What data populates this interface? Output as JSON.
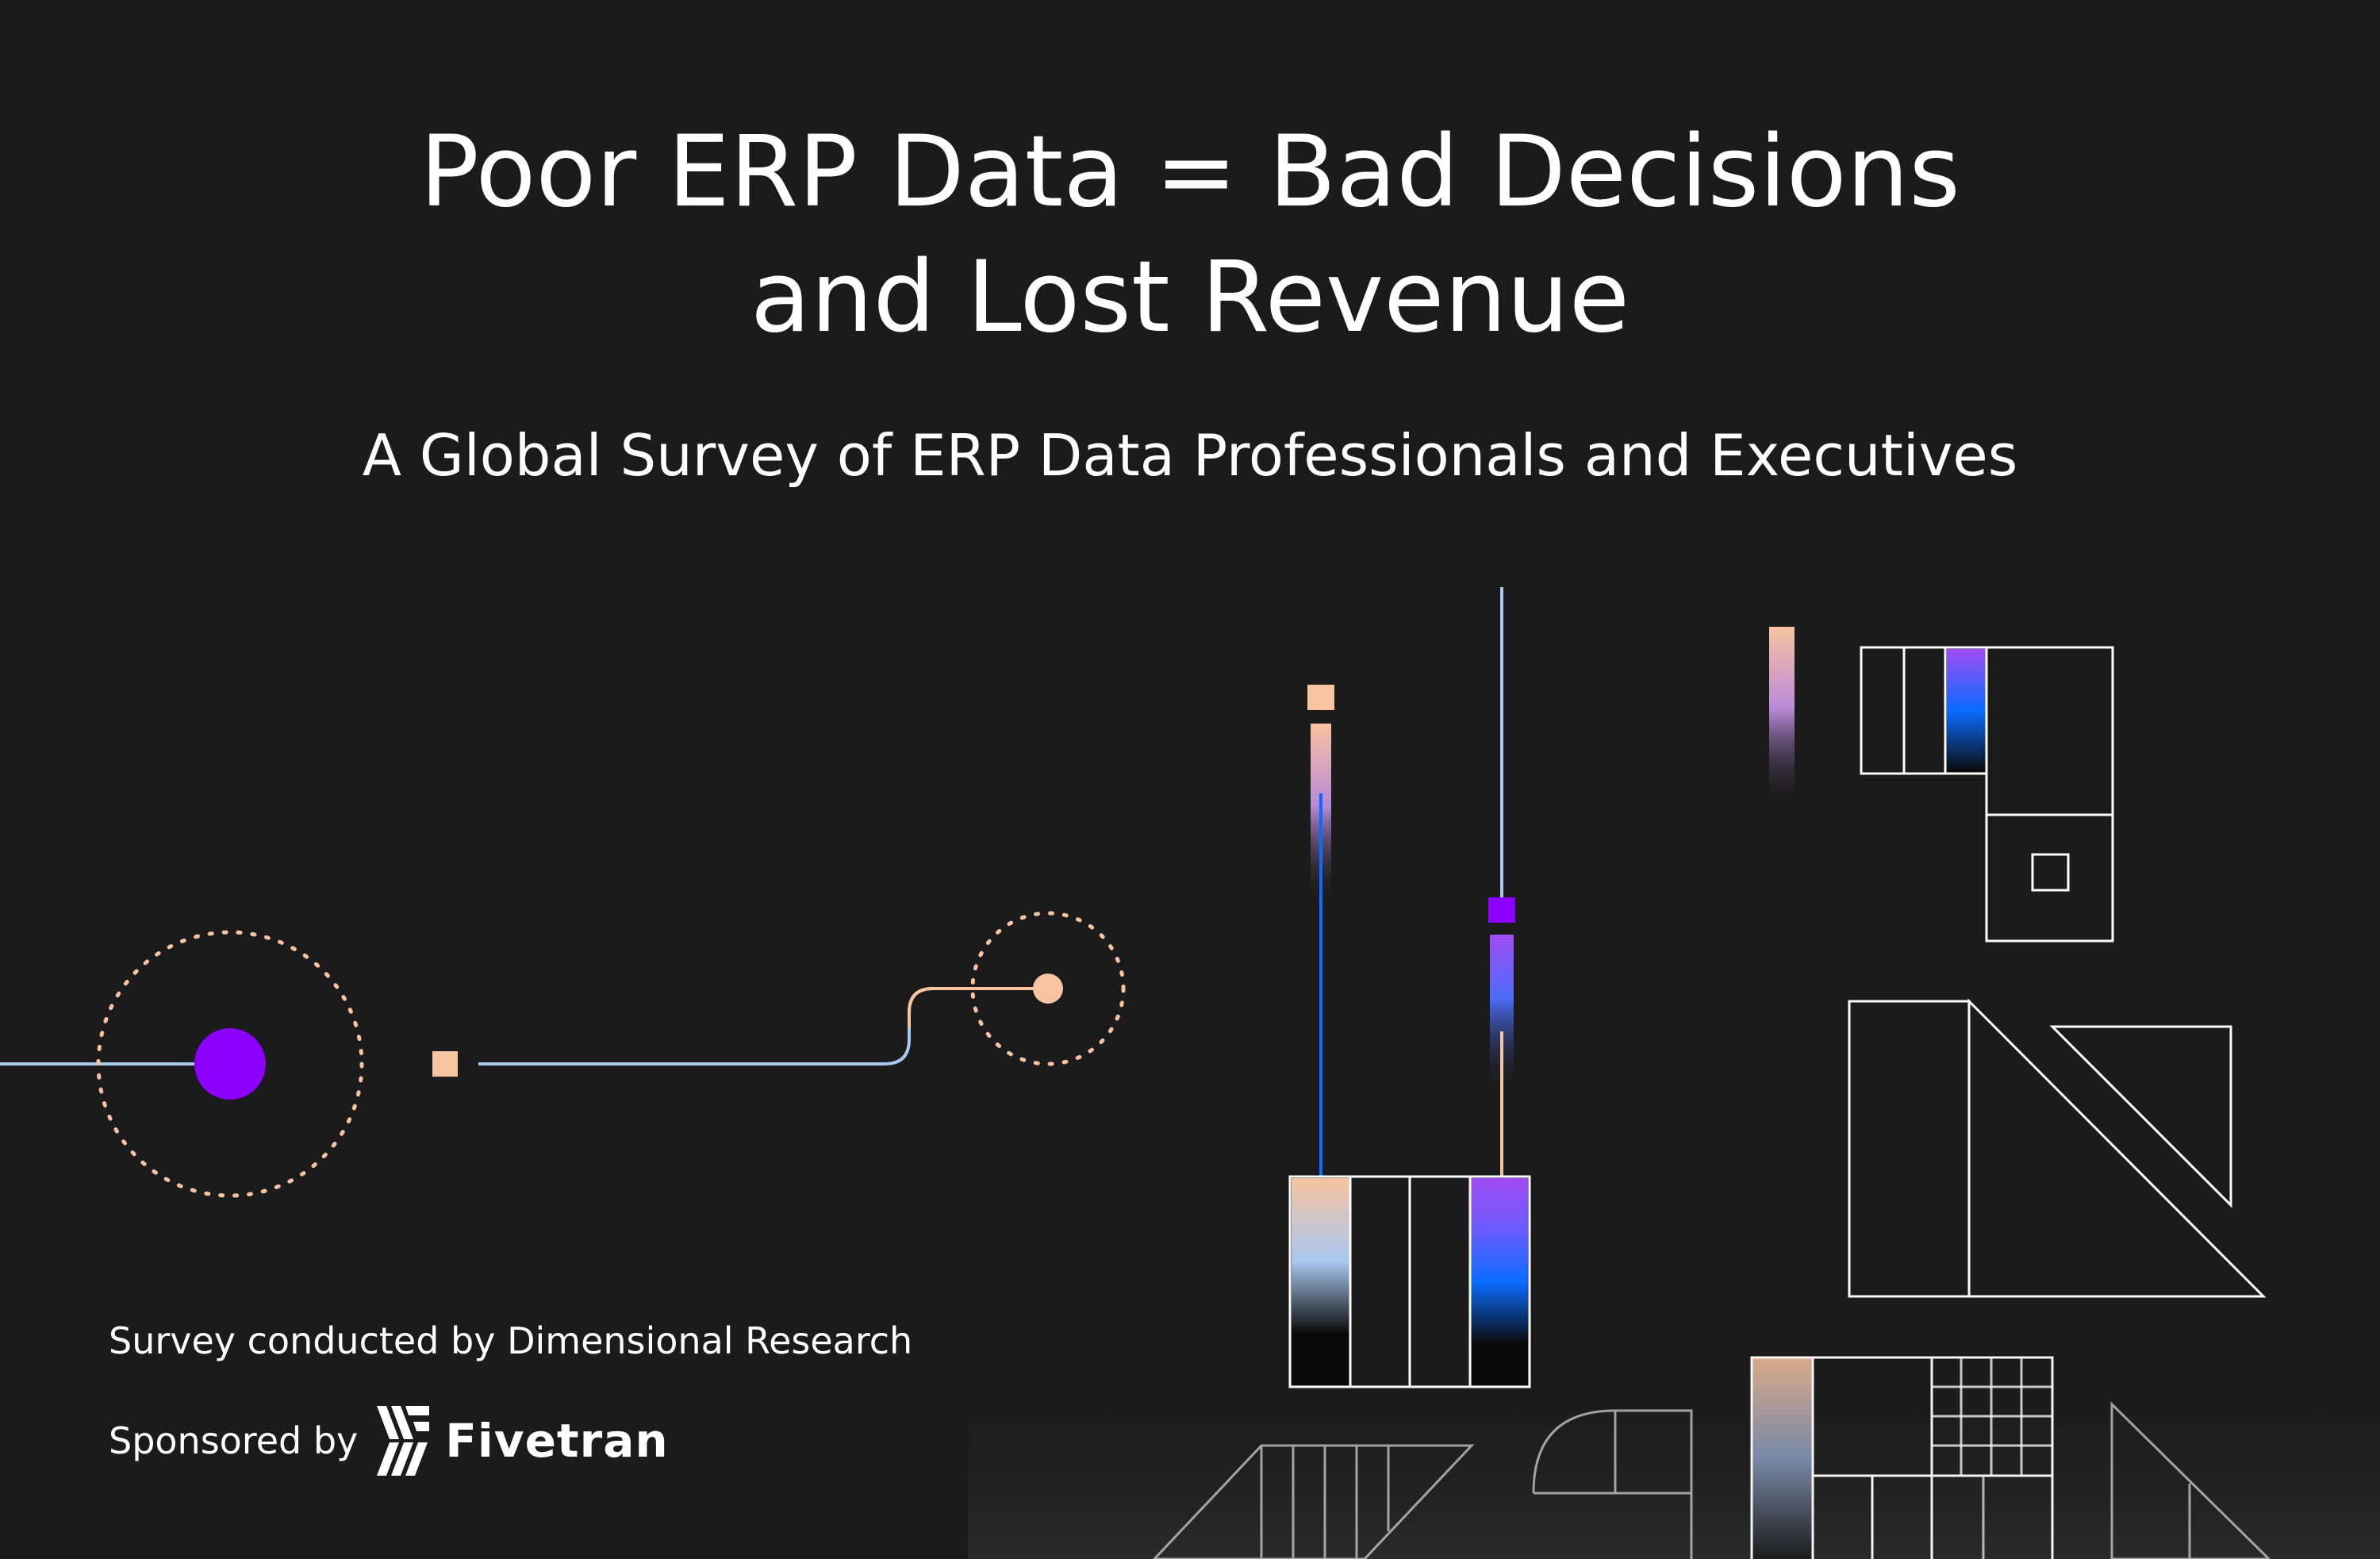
{
  "headline": {
    "line1": "Poor ERP Data = Bad Decisions",
    "line2": "and Lost Revenue"
  },
  "subtitle": "A Global Survey of ERP Data Professionals and Executives",
  "credit": "Survey conducted by Dimensional Research",
  "sponsor": {
    "label": "Sponsored by",
    "brand": "Fivetran"
  },
  "colors": {
    "background": "#1b1b1b",
    "purple": "#8b00ff",
    "peach": "#f7c3a0",
    "light_blue": "#a9c8f0",
    "blue": "#0a6cff",
    "white": "#ffffff"
  },
  "icons": [
    "fivetran-logo-mark"
  ]
}
